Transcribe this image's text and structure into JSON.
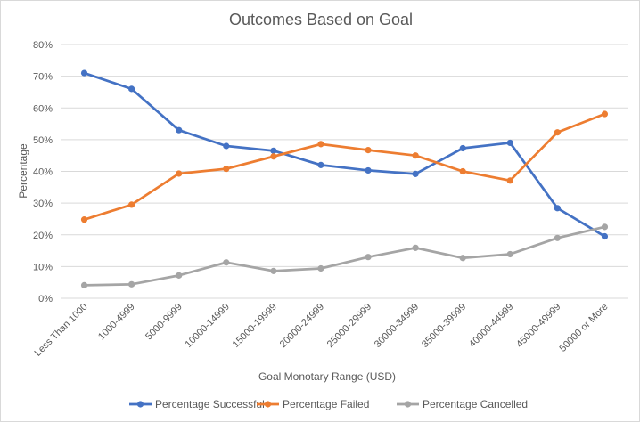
{
  "chart_data": {
    "type": "line",
    "title": "Outcomes Based on Goal",
    "xlabel": "Goal Monotary Range (USD)",
    "ylabel": "Percentage",
    "ylim": [
      0,
      80
    ],
    "y_ticks": [
      "0%",
      "10%",
      "20%",
      "30%",
      "40%",
      "50%",
      "60%",
      "70%",
      "80%"
    ],
    "grid": "horizontal",
    "legend_position": "bottom",
    "categories": [
      "Less Than 1000",
      "1000-4999",
      "5000-9999",
      "10000-14999",
      "15000-19999",
      "20000-24999",
      "25000-29999",
      "30000-34999",
      "35000-39999",
      "40000-44999",
      "45000-49999",
      "50000 or More"
    ],
    "series": [
      {
        "name": "Percentage Successful",
        "color": "#4472c4",
        "values": [
          71,
          66,
          53,
          48,
          46.5,
          42,
          40.3,
          39.2,
          47.3,
          49,
          28.4,
          19.5
        ]
      },
      {
        "name": "Percentage Failed",
        "color": "#ed7d31",
        "values": [
          24.8,
          29.5,
          39.3,
          40.8,
          44.7,
          48.6,
          46.7,
          45,
          40,
          37.1,
          52.3,
          58.1
        ]
      },
      {
        "name": "Percentage Cancelled",
        "color": "#a5a5a5",
        "values": [
          4.1,
          4.4,
          7.2,
          11.3,
          8.6,
          9.4,
          13,
          15.9,
          12.7,
          13.9,
          19,
          22.5
        ]
      }
    ]
  }
}
